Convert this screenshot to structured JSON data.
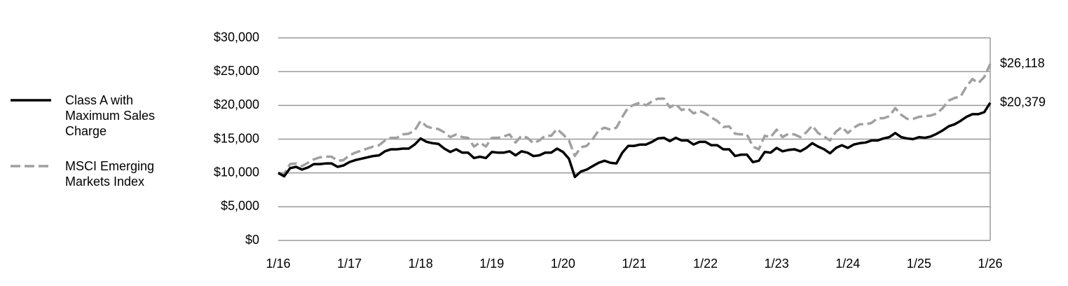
{
  "chart_data": {
    "type": "line",
    "categories": [
      "1/16",
      null,
      null,
      null,
      null,
      null,
      null,
      null,
      null,
      null,
      null,
      null,
      "1/17",
      null,
      null,
      null,
      null,
      null,
      null,
      null,
      null,
      null,
      null,
      null,
      "1/18",
      null,
      null,
      null,
      null,
      null,
      null,
      null,
      null,
      null,
      null,
      null,
      "1/19",
      null,
      null,
      null,
      null,
      null,
      null,
      null,
      null,
      null,
      null,
      null,
      "1/20",
      null,
      null,
      null,
      null,
      null,
      null,
      null,
      null,
      null,
      null,
      null,
      "1/21",
      null,
      null,
      null,
      null,
      null,
      null,
      null,
      null,
      null,
      null,
      null,
      "1/22",
      null,
      null,
      null,
      null,
      null,
      null,
      null,
      null,
      null,
      null,
      null,
      "1/23",
      null,
      null,
      null,
      null,
      null,
      null,
      null,
      null,
      null,
      null,
      null,
      "1/24",
      null,
      null,
      null,
      null,
      null,
      null,
      null,
      null,
      null,
      null,
      null,
      "1/25",
      null,
      null,
      null,
      null,
      null,
      null,
      null,
      null,
      null,
      null,
      null,
      "1/26"
    ],
    "series": [
      {
        "name": "Class A with Maximum Sales Charge",
        "color": "#000000",
        "dash": false,
        "values": [
          10000,
          9500,
          10700,
          10900,
          10500,
          10800,
          11300,
          11300,
          11400,
          11400,
          10900,
          11100,
          11600,
          11900,
          12100,
          12300,
          12500,
          12600,
          13200,
          13500,
          13500,
          13600,
          13600,
          14200,
          15100,
          14600,
          14400,
          14300,
          13600,
          13100,
          13500,
          13000,
          13000,
          12200,
          12400,
          12200,
          13100,
          13000,
          13000,
          13200,
          12600,
          13200,
          13000,
          12500,
          12600,
          13000,
          13000,
          13600,
          13100,
          12100,
          9400,
          10200,
          10500,
          11000,
          11500,
          11800,
          11500,
          11400,
          13000,
          14000,
          14000,
          14200,
          14200,
          14600,
          15100,
          15200,
          14700,
          15200,
          14800,
          14800,
          14200,
          14600,
          14600,
          14100,
          14100,
          13500,
          13500,
          12500,
          12700,
          12700,
          11600,
          11800,
          13100,
          13000,
          13700,
          13200,
          13400,
          13500,
          13200,
          13700,
          14400,
          13900,
          13500,
          12900,
          13700,
          14100,
          13700,
          14200,
          14400,
          14500,
          14800,
          14800,
          15100,
          15300,
          15900,
          15300,
          15100,
          15000,
          15300,
          15200,
          15400,
          15800,
          16300,
          16900,
          17200,
          17700,
          18300,
          18700,
          18700,
          19000,
          20379
        ],
        "value_labels": [
          null,
          null,
          null,
          null,
          null,
          null,
          null,
          null,
          null,
          null,
          null,
          null,
          null,
          null,
          null,
          null,
          null,
          null,
          null,
          null,
          null,
          null,
          null,
          null,
          null,
          null,
          null,
          null,
          null,
          null,
          null,
          null,
          null,
          null,
          null,
          null,
          null,
          null,
          null,
          null,
          null,
          null,
          null,
          null,
          null,
          null,
          null,
          null,
          null,
          null,
          null,
          null,
          null,
          null,
          null,
          null,
          null,
          null,
          null,
          null,
          null,
          null,
          null,
          null,
          null,
          null,
          null,
          null,
          null,
          null,
          null,
          null,
          null,
          null,
          null,
          null,
          null,
          null,
          null,
          null,
          null,
          null,
          null,
          null,
          null,
          null,
          null,
          null,
          null,
          null,
          null,
          null,
          null,
          null,
          null,
          null,
          null,
          null,
          null,
          null,
          null,
          null,
          null,
          null,
          null,
          null,
          null,
          null,
          null,
          null,
          null,
          null,
          null,
          null,
          null,
          null,
          null,
          null,
          null,
          null,
          "$20,379"
        ]
      },
      {
        "name": "MSCI Emerging Markets Index",
        "color": "#a0a0a0",
        "dash": true,
        "values": [
          10000,
          9900,
          11300,
          11400,
          11000,
          11500,
          12000,
          12300,
          12400,
          12400,
          11800,
          11900,
          12600,
          13000,
          13300,
          13600,
          13900,
          14100,
          14800,
          15200,
          15200,
          15700,
          15800,
          16300,
          17700,
          16900,
          16600,
          16500,
          16000,
          15300,
          15700,
          15300,
          15200,
          13900,
          14500,
          13900,
          15200,
          15200,
          15400,
          15700,
          14500,
          15500,
          15200,
          14400,
          14800,
          15500,
          15500,
          16500,
          15700,
          14800,
          12500,
          13800,
          14000,
          15000,
          16300,
          16700,
          16400,
          16700,
          18300,
          19700,
          20100,
          20400,
          20000,
          20600,
          21000,
          21000,
          19700,
          20200,
          19300,
          19600,
          18800,
          19200,
          18800,
          18200,
          17700,
          16800,
          16900,
          15800,
          15700,
          15700,
          13900,
          13500,
          15500,
          15300,
          16400,
          15300,
          15800,
          15700,
          15300,
          16000,
          17000,
          15900,
          15400,
          14800,
          16100,
          16800,
          15900,
          16700,
          17200,
          17200,
          17400,
          18100,
          18100,
          18400,
          19600,
          18600,
          18000,
          18000,
          18300,
          18400,
          18500,
          18800,
          19600,
          20700,
          21100,
          21300,
          22800,
          23900,
          23300,
          24200,
          26118
        ],
        "value_labels": [
          null,
          null,
          null,
          null,
          null,
          null,
          null,
          null,
          null,
          null,
          null,
          null,
          null,
          null,
          null,
          null,
          null,
          null,
          null,
          null,
          null,
          null,
          null,
          null,
          null,
          null,
          null,
          null,
          null,
          null,
          null,
          null,
          null,
          null,
          null,
          null,
          null,
          null,
          null,
          null,
          null,
          null,
          null,
          null,
          null,
          null,
          null,
          null,
          null,
          null,
          null,
          null,
          null,
          null,
          null,
          null,
          null,
          null,
          null,
          null,
          null,
          null,
          null,
          null,
          null,
          null,
          null,
          null,
          null,
          null,
          null,
          null,
          null,
          null,
          null,
          null,
          null,
          null,
          null,
          null,
          null,
          null,
          null,
          null,
          null,
          null,
          null,
          null,
          null,
          null,
          null,
          null,
          null,
          null,
          null,
          null,
          null,
          null,
          null,
          null,
          null,
          null,
          null,
          null,
          null,
          null,
          null,
          null,
          null,
          null,
          null,
          null,
          null,
          null,
          null,
          null,
          null,
          null,
          null,
          null,
          "$26,118"
        ]
      }
    ],
    "ylim": [
      0,
      30000
    ],
    "yticks": [
      {
        "value": 0,
        "label": "$0"
      },
      {
        "value": 5000,
        "label": "$5,000"
      },
      {
        "value": 10000,
        "label": "$10,000"
      },
      {
        "value": 15000,
        "label": "$15,000"
      },
      {
        "value": 20000,
        "label": "$20,000"
      },
      {
        "value": 25000,
        "label": "$25,000"
      },
      {
        "value": 30000,
        "label": "$30,000"
      }
    ],
    "grid": true,
    "legend": "left"
  }
}
